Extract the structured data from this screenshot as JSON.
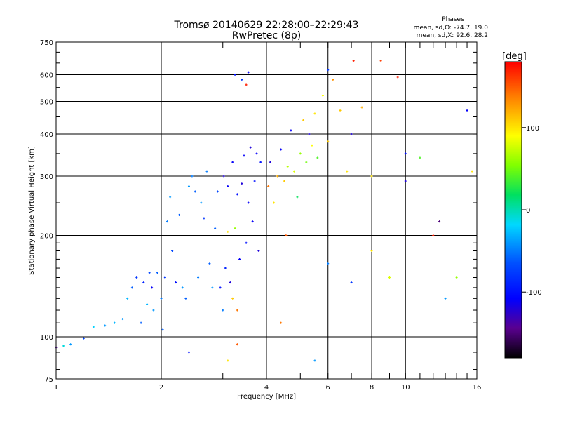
{
  "chart_data": {
    "type": "scatter",
    "title": "Tromsø 20140629 22:28:00–22:29:43",
    "subtitle": "RwPretec (8p)",
    "xlabel": "Frequency [MHz]",
    "ylabel": "Stationary phase Virtual Height [km]",
    "x_scale": "log",
    "y_scale": "log",
    "xlim": [
      1,
      16
    ],
    "ylim": [
      75,
      750
    ],
    "x_ticks": [
      "1",
      "2",
      "4",
      "6",
      "8",
      "10",
      "16"
    ],
    "x_tick_values": [
      1,
      2,
      4,
      6,
      8,
      10,
      16
    ],
    "y_ticks": [
      "75",
      "100",
      "200",
      "300",
      "400",
      "500",
      "600",
      "750"
    ],
    "y_tick_values": [
      75,
      100,
      200,
      300,
      400,
      500,
      600,
      750
    ],
    "grid": true,
    "stats": {
      "heading": "Phases",
      "line1": "mean, sd,O: -74.7, 19.0",
      "line2": "mean, sd,X:  92.6, 28.2"
    },
    "colorbar": {
      "title": "[deg]",
      "range": [
        -180,
        180
      ],
      "ticks": [
        "100",
        "0",
        "-100"
      ],
      "tick_values": [
        100,
        0,
        -100
      ]
    },
    "points": [
      {
        "x": 1.0,
        "y": 93,
        "p": -140
      },
      {
        "x": 1.05,
        "y": 94,
        "p": -10
      },
      {
        "x": 1.1,
        "y": 95,
        "p": -40
      },
      {
        "x": 1.2,
        "y": 99,
        "p": -70
      },
      {
        "x": 1.28,
        "y": 107,
        "p": -20
      },
      {
        "x": 1.38,
        "y": 108,
        "p": -40
      },
      {
        "x": 1.47,
        "y": 110,
        "p": -30
      },
      {
        "x": 1.55,
        "y": 113,
        "p": -40
      },
      {
        "x": 1.6,
        "y": 130,
        "p": -30
      },
      {
        "x": 1.65,
        "y": 140,
        "p": -60
      },
      {
        "x": 1.7,
        "y": 150,
        "p": -80
      },
      {
        "x": 1.75,
        "y": 110,
        "p": -60
      },
      {
        "x": 1.78,
        "y": 145,
        "p": -90
      },
      {
        "x": 1.82,
        "y": 125,
        "p": -30
      },
      {
        "x": 1.85,
        "y": 155,
        "p": -70
      },
      {
        "x": 1.88,
        "y": 140,
        "p": -110
      },
      {
        "x": 1.9,
        "y": 120,
        "p": -40
      },
      {
        "x": 1.95,
        "y": 155,
        "p": -60
      },
      {
        "x": 2.0,
        "y": 130,
        "p": -50
      },
      {
        "x": 2.02,
        "y": 105,
        "p": -60
      },
      {
        "x": 2.05,
        "y": 150,
        "p": -80
      },
      {
        "x": 2.08,
        "y": 220,
        "p": -50
      },
      {
        "x": 2.12,
        "y": 260,
        "p": -40
      },
      {
        "x": 2.15,
        "y": 180,
        "p": -70
      },
      {
        "x": 2.2,
        "y": 145,
        "p": -100
      },
      {
        "x": 2.25,
        "y": 230,
        "p": -60
      },
      {
        "x": 2.3,
        "y": 140,
        "p": -40
      },
      {
        "x": 2.35,
        "y": 130,
        "p": -60
      },
      {
        "x": 2.4,
        "y": 280,
        "p": -40
      },
      {
        "x": 2.45,
        "y": 300,
        "p": -50
      },
      {
        "x": 2.5,
        "y": 270,
        "p": -60
      },
      {
        "x": 2.55,
        "y": 150,
        "p": -50
      },
      {
        "x": 2.6,
        "y": 250,
        "p": -40
      },
      {
        "x": 2.65,
        "y": 225,
        "p": -80
      },
      {
        "x": 2.7,
        "y": 310,
        "p": -50
      },
      {
        "x": 2.75,
        "y": 165,
        "p": -60
      },
      {
        "x": 2.8,
        "y": 140,
        "p": -40
      },
      {
        "x": 2.85,
        "y": 210,
        "p": -60
      },
      {
        "x": 2.9,
        "y": 270,
        "p": -70
      },
      {
        "x": 2.95,
        "y": 140,
        "p": -100
      },
      {
        "x": 3.0,
        "y": 120,
        "p": -50
      },
      {
        "x": 3.02,
        "y": 300,
        "p": -120
      },
      {
        "x": 3.05,
        "y": 160,
        "p": -90
      },
      {
        "x": 3.1,
        "y": 280,
        "p": -110
      },
      {
        "x": 3.15,
        "y": 145,
        "p": -120
      },
      {
        "x": 3.2,
        "y": 330,
        "p": -110
      },
      {
        "x": 3.25,
        "y": 210,
        "p": 60
      },
      {
        "x": 3.3,
        "y": 265,
        "p": -100
      },
      {
        "x": 3.35,
        "y": 170,
        "p": -110
      },
      {
        "x": 3.4,
        "y": 285,
        "p": -120
      },
      {
        "x": 3.45,
        "y": 345,
        "p": -110
      },
      {
        "x": 3.5,
        "y": 190,
        "p": -100
      },
      {
        "x": 3.55,
        "y": 250,
        "p": -110
      },
      {
        "x": 3.6,
        "y": 365,
        "p": -120
      },
      {
        "x": 3.65,
        "y": 220,
        "p": -110
      },
      {
        "x": 3.7,
        "y": 290,
        "p": -100
      },
      {
        "x": 3.75,
        "y": 350,
        "p": -110
      },
      {
        "x": 3.8,
        "y": 180,
        "p": -120
      },
      {
        "x": 3.85,
        "y": 330,
        "p": -100
      },
      {
        "x": 3.2,
        "y": 130,
        "p": 110
      },
      {
        "x": 3.3,
        "y": 120,
        "p": 140
      },
      {
        "x": 3.1,
        "y": 205,
        "p": 100
      },
      {
        "x": 3.25,
        "y": 600,
        "p": -100
      },
      {
        "x": 3.4,
        "y": 580,
        "p": -80
      },
      {
        "x": 3.55,
        "y": 610,
        "p": -110
      },
      {
        "x": 3.5,
        "y": 560,
        "p": 170
      },
      {
        "x": 4.05,
        "y": 280,
        "p": 140
      },
      {
        "x": 4.1,
        "y": 330,
        "p": -120
      },
      {
        "x": 4.2,
        "y": 250,
        "p": 100
      },
      {
        "x": 4.3,
        "y": 300,
        "p": 120
      },
      {
        "x": 4.4,
        "y": 360,
        "p": -110
      },
      {
        "x": 4.5,
        "y": 290,
        "p": 110
      },
      {
        "x": 4.55,
        "y": 200,
        "p": 150
      },
      {
        "x": 4.6,
        "y": 320,
        "p": 70
      },
      {
        "x": 4.7,
        "y": 410,
        "p": -110
      },
      {
        "x": 4.8,
        "y": 310,
        "p": 80
      },
      {
        "x": 4.9,
        "y": 260,
        "p": 20
      },
      {
        "x": 5.0,
        "y": 350,
        "p": 60
      },
      {
        "x": 5.1,
        "y": 440,
        "p": 110
      },
      {
        "x": 5.2,
        "y": 330,
        "p": 50
      },
      {
        "x": 5.3,
        "y": 400,
        "p": -120
      },
      {
        "x": 5.4,
        "y": 370,
        "p": 90
      },
      {
        "x": 5.5,
        "y": 460,
        "p": 100
      },
      {
        "x": 5.6,
        "y": 340,
        "p": 40
      },
      {
        "x": 5.8,
        "y": 520,
        "p": 90
      },
      {
        "x": 6.0,
        "y": 380,
        "p": 110
      },
      {
        "x": 6.0,
        "y": 620,
        "p": -80
      },
      {
        "x": 6.2,
        "y": 580,
        "p": 130
      },
      {
        "x": 6.5,
        "y": 470,
        "p": 110
      },
      {
        "x": 6.8,
        "y": 310,
        "p": 100
      },
      {
        "x": 7.0,
        "y": 400,
        "p": -120
      },
      {
        "x": 7.1,
        "y": 660,
        "p": 170
      },
      {
        "x": 7.5,
        "y": 480,
        "p": 120
      },
      {
        "x": 8.0,
        "y": 300,
        "p": 100
      },
      {
        "x": 8.5,
        "y": 660,
        "p": 160
      },
      {
        "x": 9.0,
        "y": 150,
        "p": 80
      },
      {
        "x": 9.5,
        "y": 590,
        "p": 170
      },
      {
        "x": 10.0,
        "y": 350,
        "p": -100
      },
      {
        "x": 10.0,
        "y": 290,
        "p": -120
      },
      {
        "x": 11.0,
        "y": 340,
        "p": 40
      },
      {
        "x": 12.0,
        "y": 200,
        "p": 170
      },
      {
        "x": 12.5,
        "y": 220,
        "p": -150
      },
      {
        "x": 13.0,
        "y": 130,
        "p": -40
      },
      {
        "x": 14.0,
        "y": 150,
        "p": 60
      },
      {
        "x": 15.0,
        "y": 470,
        "p": -110
      },
      {
        "x": 15.5,
        "y": 310,
        "p": 100
      },
      {
        "x": 6.0,
        "y": 165,
        "p": -50
      },
      {
        "x": 7.0,
        "y": 145,
        "p": -80
      },
      {
        "x": 8.0,
        "y": 180,
        "p": 100
      },
      {
        "x": 3.1,
        "y": 85,
        "p": 100
      },
      {
        "x": 3.3,
        "y": 95,
        "p": 150
      },
      {
        "x": 4.4,
        "y": 110,
        "p": 140
      },
      {
        "x": 5.5,
        "y": 85,
        "p": -40
      },
      {
        "x": 2.4,
        "y": 90,
        "p": -100
      }
    ]
  }
}
